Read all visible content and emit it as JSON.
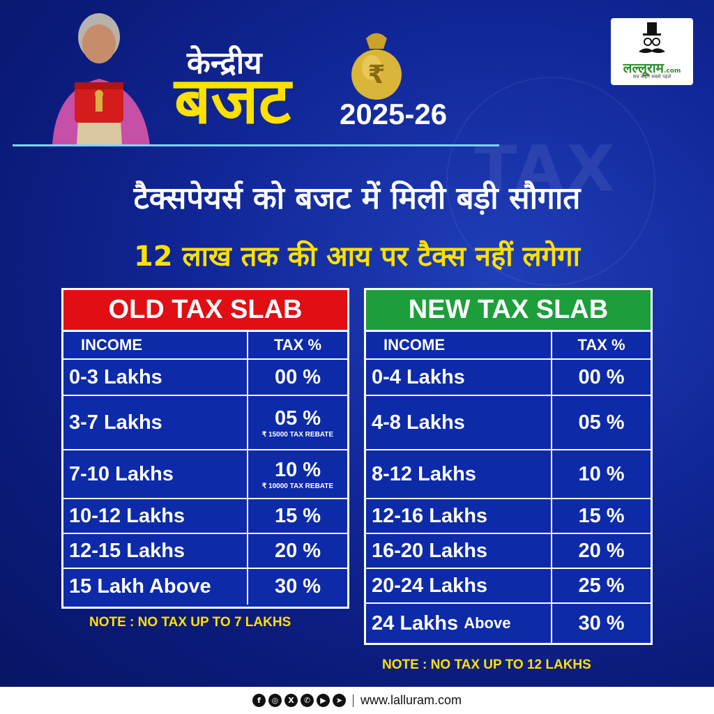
{
  "header": {
    "title_small": "केन्द्रीय",
    "title_big": "बजट",
    "year": "2025-26",
    "logo_text": "लल्लूराम",
    "logo_suffix": ".com",
    "logo_tagline": "सच कहेंगे सबसे पहले"
  },
  "headline": "टैक्सपेयर्स को बजट में मिली बड़ी सौगात",
  "subheadline": "12 लाख तक की आय पर टैक्स नहीं लगेगा",
  "old_slab": {
    "title": "OLD TAX SLAB",
    "col_income": "INCOME",
    "col_tax": "TAX %",
    "rows": [
      {
        "income": "0-3 Lakhs",
        "tax": "00 %",
        "note": ""
      },
      {
        "income": "3-7 Lakhs",
        "tax": "05 %",
        "note": "₹ 15000 TAX REBATE"
      },
      {
        "income": "7-10 Lakhs",
        "tax": "10 %",
        "note": "₹ 10000 TAX REBATE"
      },
      {
        "income": "10-12 Lakhs",
        "tax": "15 %",
        "note": ""
      },
      {
        "income": "12-15 Lakhs",
        "tax": "20 %",
        "note": ""
      },
      {
        "income": "15 Lakh Above",
        "tax": "30 %",
        "note": ""
      }
    ],
    "note": "NOTE : NO TAX UP TO 7 LAKHS"
  },
  "new_slab": {
    "title": "NEW TAX SLAB",
    "col_income": "INCOME",
    "col_tax": "TAX %",
    "rows": [
      {
        "income": "0-4 Lakhs",
        "tax": "00 %"
      },
      {
        "income": "4-8 Lakhs",
        "tax": "05 %"
      },
      {
        "income": "8-12 Lakhs",
        "tax": "10 %"
      },
      {
        "income": "12-16 Lakhs",
        "tax": "15 %"
      },
      {
        "income": "16-20 Lakhs",
        "tax": "20 %"
      },
      {
        "income": "20-24 Lakhs",
        "tax": "25 %"
      },
      {
        "income_main": "24 Lakhs",
        "income_small": "Above",
        "tax": "30 %"
      }
    ],
    "note": "NOTE : NO TAX UP TO 12 LAKHS"
  },
  "footer": {
    "icons": [
      "facebook-icon",
      "instagram-icon",
      "x-icon",
      "whatsapp-icon",
      "youtube-icon",
      "telegram-icon"
    ],
    "url": "www.lalluram.com"
  },
  "colors": {
    "background": "#12289a",
    "accent_yellow": "#ffe100",
    "old_header": "#e10e14",
    "new_header": "#1c9e3a"
  }
}
